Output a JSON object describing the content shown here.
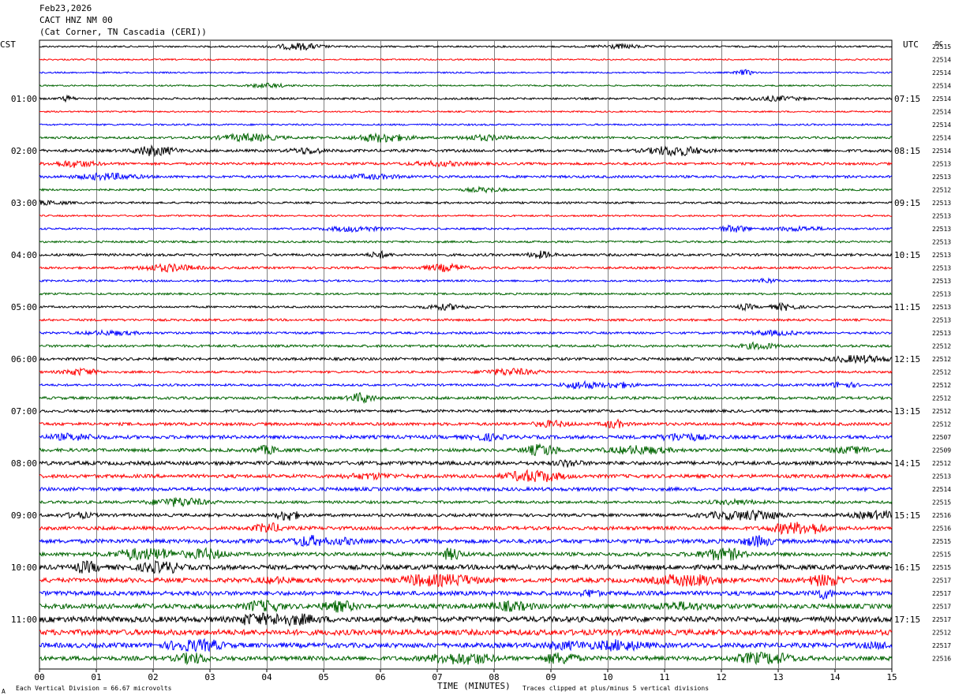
{
  "header": {
    "date": "Feb23,2026",
    "station": "CACT HNZ NM 00",
    "location": "(Cat Corner, TN Cascadia (CERI))"
  },
  "labels": {
    "left_timezone": "CST",
    "right_timezone": "UTC",
    "dc_header": "DC",
    "x_axis_title": "TIME (MINUTES)",
    "scale_note": "Each Vertical Division =   66.67 microvolts",
    "clip_note": "Traces clipped at plus/minus 5 vertical divisions",
    "corner_mark": "A"
  },
  "colors": {
    "trace_cycle": [
      "#000000",
      "#ff0000",
      "#0000ff",
      "#006400"
    ],
    "grid": "#808080"
  },
  "chart_data": {
    "type": "line",
    "title": "CACT HNZ NM 00",
    "xlabel": "TIME (MINUTES)",
    "ylabel": "",
    "xlim": [
      0,
      15
    ],
    "x_ticks": [
      "00",
      "01",
      "02",
      "03",
      "04",
      "05",
      "06",
      "07",
      "08",
      "09",
      "10",
      "11",
      "12",
      "13",
      "14",
      "15"
    ],
    "grid": true,
    "rows": 48,
    "left_hour_labels": [
      {
        "row": 4,
        "label": "01:00"
      },
      {
        "row": 8,
        "label": "02:00"
      },
      {
        "row": 12,
        "label": "03:00"
      },
      {
        "row": 16,
        "label": "04:00"
      },
      {
        "row": 20,
        "label": "05:00"
      },
      {
        "row": 24,
        "label": "06:00"
      },
      {
        "row": 28,
        "label": "07:00"
      },
      {
        "row": 32,
        "label": "08:00"
      },
      {
        "row": 36,
        "label": "09:00"
      },
      {
        "row": 40,
        "label": "10:00"
      },
      {
        "row": 44,
        "label": "11:00"
      }
    ],
    "right_hour_labels": [
      {
        "row": 4,
        "label": "07:15"
      },
      {
        "row": 8,
        "label": "08:15"
      },
      {
        "row": 12,
        "label": "09:15"
      },
      {
        "row": 16,
        "label": "10:15"
      },
      {
        "row": 20,
        "label": "11:15"
      },
      {
        "row": 24,
        "label": "12:15"
      },
      {
        "row": 28,
        "label": "13:15"
      },
      {
        "row": 32,
        "label": "14:15"
      },
      {
        "row": 36,
        "label": "15:15"
      },
      {
        "row": 40,
        "label": "16:15"
      },
      {
        "row": 44,
        "label": "17:15"
      }
    ],
    "dc_values": [
      "22515",
      "22514",
      "22514",
      "22514",
      "22514",
      "22514",
      "22514",
      "22514",
      "22514",
      "22513",
      "22513",
      "22512",
      "22513",
      "22513",
      "22513",
      "22513",
      "22513",
      "22513",
      "22513",
      "22513",
      "22513",
      "22513",
      "22513",
      "22512",
      "22512",
      "22512",
      "22512",
      "22512",
      "22512",
      "22512",
      "22507",
      "22509",
      "22512",
      "22513",
      "22514",
      "22515",
      "22516",
      "22516",
      "22515",
      "22515",
      "22515",
      "22517",
      "22517",
      "22517",
      "22517",
      "22512",
      "22517",
      "22516"
    ],
    "trace_activity": [
      0.3,
      0.2,
      0.2,
      0.2,
      0.4,
      0.2,
      0.3,
      0.5,
      0.7,
      0.6,
      0.6,
      0.4,
      0.4,
      0.3,
      0.4,
      0.4,
      0.6,
      0.5,
      0.4,
      0.4,
      0.4,
      0.5,
      0.5,
      0.6,
      0.7,
      0.5,
      0.5,
      0.7,
      0.7,
      0.8,
      1.0,
      0.9,
      1.1,
      1.0,
      1.0,
      0.7,
      0.8,
      1.0,
      1.2,
      1.1,
      1.5,
      1.4,
      1.3,
      1.5,
      1.8,
      1.8,
      1.5,
      1.3
    ]
  }
}
